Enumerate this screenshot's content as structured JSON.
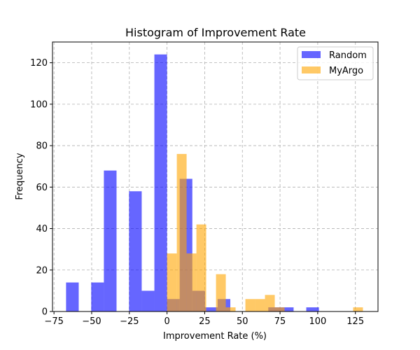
{
  "chart_data": {
    "type": "bar",
    "subtype": "histogram",
    "title": "Histogram of Improvement Rate",
    "xlabel": "Improvement Rate (%)",
    "ylabel": "Frequency",
    "xlim": [
      -76,
      140
    ],
    "ylim": [
      0,
      130
    ],
    "x_ticks": [
      -75,
      -50,
      -25,
      0,
      25,
      50,
      75,
      100,
      125
    ],
    "x_tick_labels": [
      "−75",
      "−50",
      "−25",
      "0",
      "25",
      "50",
      "75",
      "100",
      "125"
    ],
    "y_ticks": [
      0,
      20,
      40,
      60,
      80,
      100,
      120
    ],
    "y_tick_labels": [
      "0",
      "20",
      "40",
      "60",
      "80",
      "100",
      "120"
    ],
    "grid": true,
    "legend_position": "top-right",
    "series": [
      {
        "name": "Random",
        "color": "#0000ff",
        "opacity": 0.6,
        "bins": [
          {
            "x0": -67.0,
            "x1": -58.6,
            "count": 14
          },
          {
            "x0": -50.3,
            "x1": -41.9,
            "count": 14
          },
          {
            "x0": -41.9,
            "x1": -33.5,
            "count": 68
          },
          {
            "x0": -25.2,
            "x1": -16.8,
            "count": 58
          },
          {
            "x0": -16.8,
            "x1": -8.4,
            "count": 10
          },
          {
            "x0": -8.4,
            "x1": 0.0,
            "count": 124
          },
          {
            "x0": 0.0,
            "x1": 8.4,
            "count": 6
          },
          {
            "x0": 8.4,
            "x1": 16.8,
            "count": 64
          },
          {
            "x0": 16.8,
            "x1": 25.2,
            "count": 10
          },
          {
            "x0": 25.2,
            "x1": 33.6,
            "count": 2
          },
          {
            "x0": 33.6,
            "x1": 42.0,
            "count": 6
          },
          {
            "x0": 67.2,
            "x1": 75.6,
            "count": 2
          },
          {
            "x0": 75.6,
            "x1": 84.0,
            "count": 2
          },
          {
            "x0": 92.4,
            "x1": 100.8,
            "count": 2
          }
        ]
      },
      {
        "name": "MyArgo",
        "color": "#ffa500",
        "opacity": 0.6,
        "bins": [
          {
            "x0": 0.0,
            "x1": 6.5,
            "count": 28
          },
          {
            "x0": 6.5,
            "x1": 13.0,
            "count": 76
          },
          {
            "x0": 13.0,
            "x1": 19.5,
            "count": 28
          },
          {
            "x0": 19.5,
            "x1": 26.0,
            "count": 42
          },
          {
            "x0": 32.5,
            "x1": 39.0,
            "count": 18
          },
          {
            "x0": 39.0,
            "x1": 45.5,
            "count": 2
          },
          {
            "x0": 52.0,
            "x1": 58.5,
            "count": 6
          },
          {
            "x0": 58.5,
            "x1": 65.0,
            "count": 6
          },
          {
            "x0": 65.0,
            "x1": 71.5,
            "count": 8
          },
          {
            "x0": 71.5,
            "x1": 78.0,
            "count": 2
          },
          {
            "x0": 123.5,
            "x1": 130.0,
            "count": 2
          }
        ]
      }
    ]
  }
}
